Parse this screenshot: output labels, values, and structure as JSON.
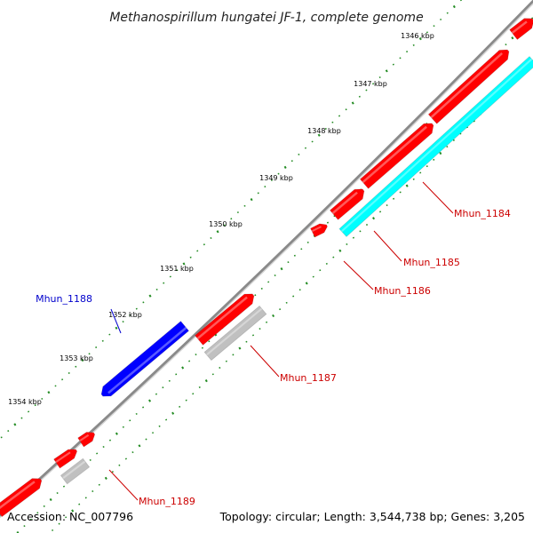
{
  "title": "Methanospirillum hungatei JF-1, complete genome",
  "footer": {
    "accession": "Accession: NC_007796",
    "summary": "Topology: circular; Length: 3,544,738 bp; Genes: 3,205"
  },
  "colors": {
    "backbone": "#8a8a8a",
    "forward_gene": "#ff0000",
    "reverse_gene": "#0000ff",
    "orf_cyan": "#00ffff",
    "orf_gray": "#c0c0c0",
    "tick": "#228b22",
    "label_red": "#cc0000",
    "label_blue": "#0000cc"
  },
  "ticks": [
    {
      "label": "1346 kbp",
      "kbp": 1346
    },
    {
      "label": "1347 kbp",
      "kbp": 1347
    },
    {
      "label": "1348 kbp",
      "kbp": 1348
    },
    {
      "label": "1349 kbp",
      "kbp": 1349
    },
    {
      "label": "1350 kbp",
      "kbp": 1350
    },
    {
      "label": "1351 kbp",
      "kbp": 1351
    },
    {
      "label": "1352 kbp",
      "kbp": 1352
    },
    {
      "label": "1353 kbp",
      "kbp": 1353
    },
    {
      "label": "1354 kbp",
      "kbp": 1354
    }
  ],
  "gene_labels": [
    {
      "text": "Mhun_1184",
      "strand": "forward"
    },
    {
      "text": "Mhun_1185",
      "strand": "forward"
    },
    {
      "text": "Mhun_1186",
      "strand": "forward"
    },
    {
      "text": "Mhun_1187",
      "strand": "forward"
    },
    {
      "text": "Mhun_1188",
      "strand": "reverse"
    },
    {
      "text": "Mhun_1189",
      "strand": "forward"
    }
  ]
}
